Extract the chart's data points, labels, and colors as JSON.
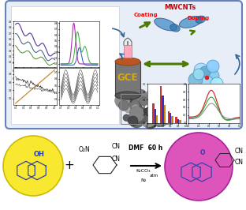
{
  "panel_bg": "#e8eef8",
  "panel_border": "#6680bb",
  "gce_label": "GCE",
  "mwcnts_label": "MWCNTs",
  "coating_label": "Coating",
  "doping_label": "Doping",
  "reaction_label1": "DMF  60 h",
  "reaction_label2": "K₂CO₃",
  "reaction_label3": "atm",
  "reaction_label4": "N₂",
  "oh_label": "OH",
  "o2n_label": "O₂N",
  "cn_label": "CN",
  "plus_label": "+",
  "o_label": "O",
  "yellow_color": "#f8e830",
  "pink_color": "#dd55bb",
  "gce_body_color": "#888888",
  "gce_top_color": "#cc6633",
  "arrow_green": "#4a7a00",
  "arrow_blue": "#336699",
  "text_red": "#cc0000",
  "text_gold": "#ddaa00",
  "sphere_colors": [
    "#aaddff",
    "#88ccee",
    "#99ddff",
    "#77bbdd",
    "#aaeeff",
    "#66aacc",
    "#88ccff",
    "#99ddee"
  ]
}
